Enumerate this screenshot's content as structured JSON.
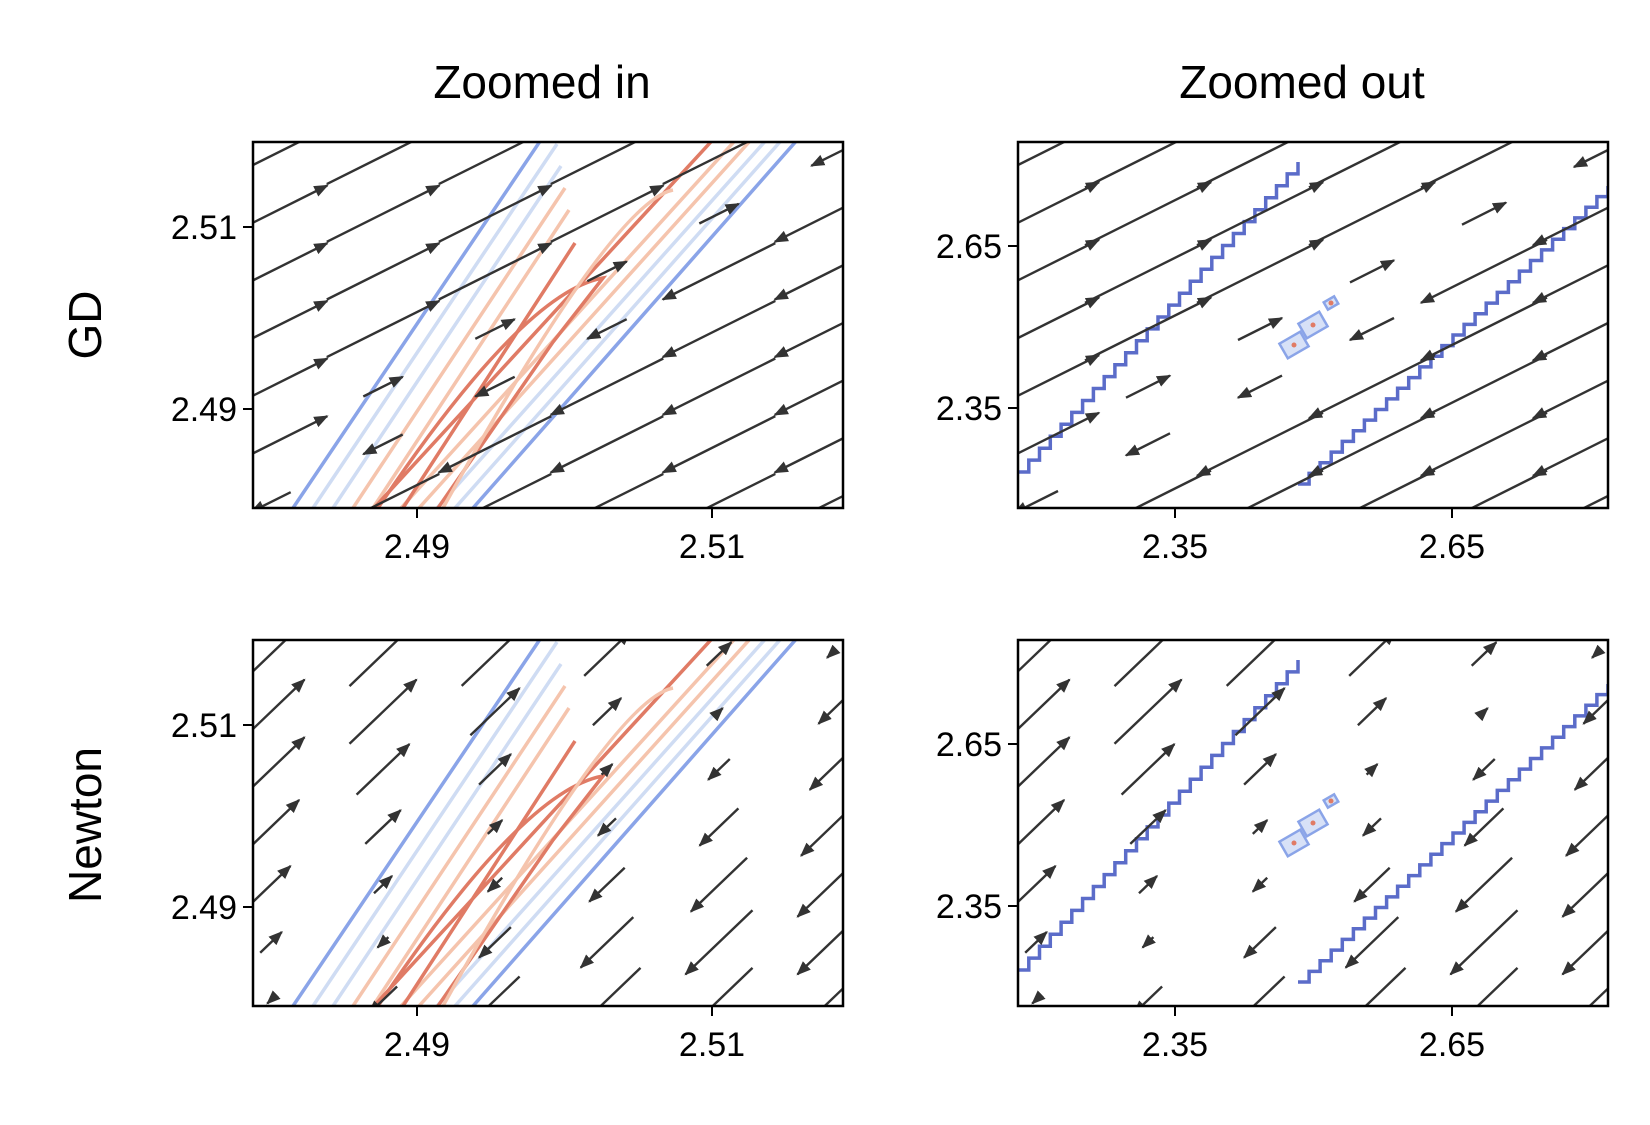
{
  "chart_data": {
    "type": "quiver-contour grid",
    "columns": [
      "Zoomed in",
      "Zoomed out"
    ],
    "rows": [
      "GD",
      "Newton"
    ],
    "colors": {
      "arrow": "#333333",
      "contour_high": "#e07b65",
      "contour_mid": "#f5c4ad",
      "contour_low": "#cfdcf3",
      "contour_outer": "#8aa4e8",
      "contour_zoomed_out": "#5b6cc9"
    },
    "panels": [
      {
        "row": "GD",
        "column": "Zoomed in",
        "xlim": [
          2.479,
          2.519
        ],
        "ylim": [
          2.479,
          2.519
        ],
        "xticks": [
          "2.49",
          "2.51"
        ],
        "yticks": [
          "2.51",
          "2.49"
        ],
        "field": "gd"
      },
      {
        "row": "GD",
        "column": "Zoomed out",
        "xlim": [
          2.07,
          3.14
        ],
        "ylim": [
          2.07,
          3.14
        ],
        "xticks": [
          "2.35",
          "2.65"
        ],
        "yticks": [
          "2.65",
          "2.35"
        ],
        "field": "gd"
      },
      {
        "row": "Newton",
        "column": "Zoomed in",
        "xlim": [
          2.479,
          2.519
        ],
        "ylim": [
          2.479,
          2.519
        ],
        "xticks": [
          "2.49",
          "2.51"
        ],
        "yticks": [
          "2.51",
          "2.49"
        ],
        "field": "newton"
      },
      {
        "row": "Newton",
        "column": "Zoomed out",
        "xlim": [
          2.07,
          3.14
        ],
        "ylim": [
          2.07,
          3.14
        ],
        "xticks": [
          "2.35",
          "2.65"
        ],
        "yticks": [
          "2.65",
          "2.35"
        ],
        "field": "newton"
      }
    ]
  }
}
